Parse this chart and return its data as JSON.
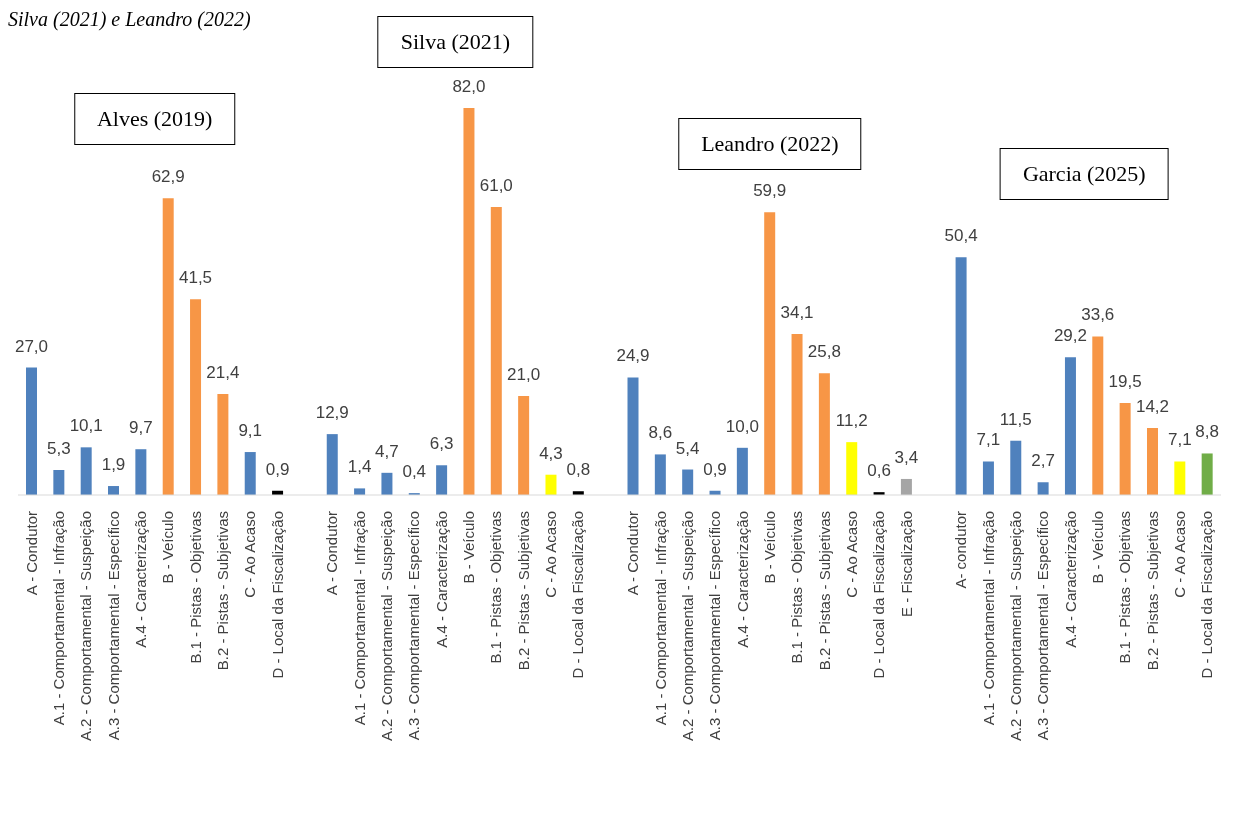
{
  "chart_data": {
    "type": "bar",
    "title": "Silva (2021) e Leandro (2022)",
    "annotations": [
      "Alves (2019)",
      "Silva (2021)",
      "Leandro (2022)",
      "Garcia (2025)"
    ],
    "categories": [
      "A - Condutor",
      "A.1 - Comportamental - Infração",
      "A.2 - Comportamental - Suspeição",
      "A.3 - Comportamental - Específico",
      "A.4 - Caracterização",
      "B - Veículo",
      "B.1 - Pistas - Objetivas",
      "B.2 - Pistas - Subjetivas",
      "C - Ao Acaso",
      "D - Local da Fiscalização",
      null,
      "A - Condutor",
      "A.1 - Comportamental - Infração",
      "A.2 - Comportamental - Suspeição",
      "A.3 - Comportamental - Específico",
      "A.4 - Caracterização",
      "B - Veículo",
      "B.1 - Pistas - Objetivas",
      "B.2 - Pistas - Subjetivas",
      "C - Ao Acaso",
      "D - Local da Fiscalização",
      null,
      "A - Condutor",
      "A.1 - Comportamental - Infração",
      "A.2 - Comportamental - Suspeição",
      "A.3 - Comportamental - Específico",
      "A.4 - Caracterização",
      "B - Veículo",
      "B.1 - Pistas - Objetivas",
      "B.2 - Pistas - Subjetivas",
      "C - Ao Acaso",
      "D - Local da Fiscalização",
      "E - Fiscalização",
      null,
      "A- condutor",
      "A.1 - Comportamental - Infração",
      "A.2 - Comportamental - Suspeição",
      "A.3 - Comportamental - Específico",
      "A.4 - Caracterização",
      "B - Veículo",
      "B.1 - Pistas - Objetivas",
      "B.2 - Pistas - Subjetivas",
      "C - Ao Acaso",
      "D - Local da Fiscalização"
    ],
    "values": [
      27.0,
      5.3,
      10.1,
      1.9,
      9.7,
      62.9,
      41.5,
      21.4,
      9.1,
      0.9,
      null,
      12.9,
      1.4,
      4.7,
      0.4,
      6.3,
      82.0,
      61.0,
      21.0,
      4.3,
      0.8,
      null,
      24.9,
      8.6,
      5.4,
      0.9,
      10.0,
      59.9,
      34.1,
      25.8,
      11.2,
      0.6,
      3.4,
      null,
      50.4,
      7.1,
      11.5,
      2.7,
      29.2,
      33.6,
      19.5,
      14.2,
      7.1,
      8.8
    ],
    "value_labels": [
      "27,0",
      "5,3",
      "10,1",
      "1,9",
      "9,7",
      "62,9",
      "41,5",
      "21,4",
      "9,1",
      "0,9",
      null,
      "12,9",
      "1,4",
      "4,7",
      "0,4",
      "6,3",
      "82,0",
      "61,0",
      "21,0",
      "4,3",
      "0,8",
      null,
      "24,9",
      "8,6",
      "5,4",
      "0,9",
      "10,0",
      "59,9",
      "34,1",
      "25,8",
      "11,2",
      "0,6",
      "3,4",
      null,
      "50,4",
      "7,1",
      "11,5",
      "2,7",
      "29,2",
      "33,6",
      "19,5",
      "14,2",
      "7,1",
      "8,8"
    ],
    "colors": [
      "#4f81bd",
      "#4f81bd",
      "#4f81bd",
      "#4f81bd",
      "#4f81bd",
      "#f79646",
      "#f79646",
      "#f79646",
      "#4f81bd",
      "#000000",
      null,
      "#4f81bd",
      "#4f81bd",
      "#4f81bd",
      "#4f81bd",
      "#4f81bd",
      "#f79646",
      "#f79646",
      "#f79646",
      "#ffff00",
      "#000000",
      null,
      "#4f81bd",
      "#4f81bd",
      "#4f81bd",
      "#4f81bd",
      "#4f81bd",
      "#f79646",
      "#f79646",
      "#f79646",
      "#ffff00",
      "#000000",
      "#a5a5a5",
      null,
      "#4f81bd",
      "#4f81bd",
      "#4f81bd",
      "#4f81bd",
      "#4f81bd",
      "#f79646",
      "#f79646",
      "#f79646",
      "#ffff00",
      "#70ad47"
    ]
  }
}
